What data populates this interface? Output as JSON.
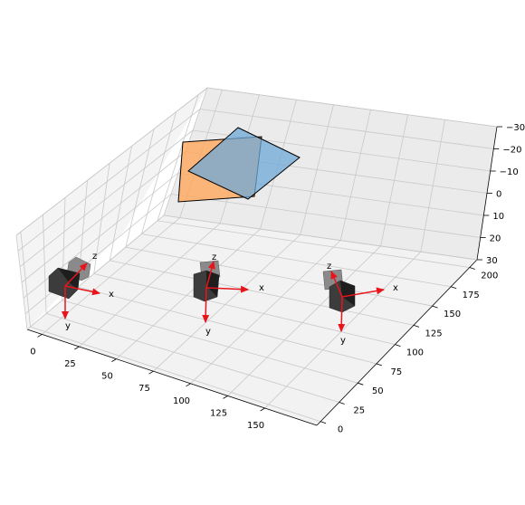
{
  "chart_data": {
    "type": "3d-scene",
    "axes": {
      "x": {
        "ticks": [
          "0",
          "25",
          "50",
          "75",
          "100",
          "125",
          "150"
        ],
        "range": [
          -10,
          185
        ]
      },
      "y": {
        "ticks": [
          "0",
          "25",
          "50",
          "75",
          "100",
          "125",
          "150",
          "175",
          "200"
        ],
        "range": [
          -5,
          210
        ]
      },
      "z": {
        "ticks": [
          "−30",
          "−20",
          "−10",
          "0",
          "10",
          "20",
          "30"
        ],
        "range": [
          -30,
          30
        ],
        "inverted": true
      },
      "grid": true
    },
    "planes": [
      {
        "name": "orange-plane",
        "color": "#ffa85c"
      },
      {
        "name": "blue-plane",
        "color": "#6ea8d8"
      }
    ],
    "camera_frames": [
      {
        "axis_labels": [
          "x",
          "y",
          "z"
        ]
      },
      {
        "axis_labels": [
          "x",
          "y",
          "z"
        ]
      },
      {
        "axis_labels": [
          "x",
          "y",
          "z"
        ]
      }
    ],
    "colors": {
      "frame_arrow": "#e8141c",
      "pane": "#f2f2f2",
      "grid": "#c8c8c8"
    }
  }
}
